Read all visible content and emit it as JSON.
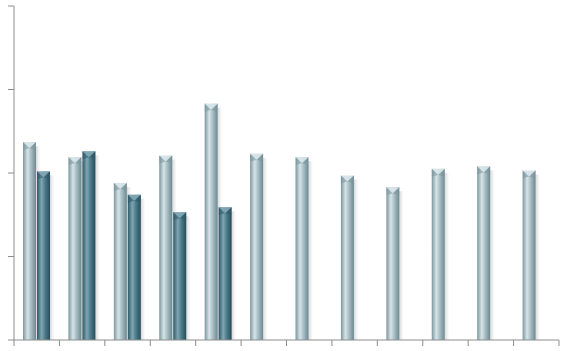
{
  "chart_data": {
    "type": "bar",
    "title": "",
    "xlabel": "",
    "ylabel": "",
    "categories": [
      "",
      "",
      "",
      "",
      "",
      "",
      "",
      "",
      "",
      "",
      "",
      ""
    ],
    "ylim": [
      0,
      4
    ],
    "y_ticks": [
      0,
      1,
      2,
      3,
      4
    ],
    "grid": false,
    "legend": "none",
    "series": [
      {
        "values": [
          2.37,
          2.19,
          1.88,
          2.21,
          2.83,
          2.23,
          2.19,
          1.97,
          1.83,
          2.05,
          2.08,
          2.03
        ]
      },
      {
        "values": [
          2.02,
          2.26,
          1.74,
          1.53,
          1.59,
          null,
          null,
          null,
          null,
          null,
          null,
          null
        ]
      }
    ],
    "colors": {
      "series_1_light": "#d7e4e8",
      "series_1_mid": "#a9c0c7",
      "series_1_dark": "#7b969e",
      "series_2_light": "#7fa7b3",
      "series_2_mid": "#4f7e8d",
      "series_2_dark": "#2f5968",
      "axis": "#8c8c8c"
    }
  }
}
